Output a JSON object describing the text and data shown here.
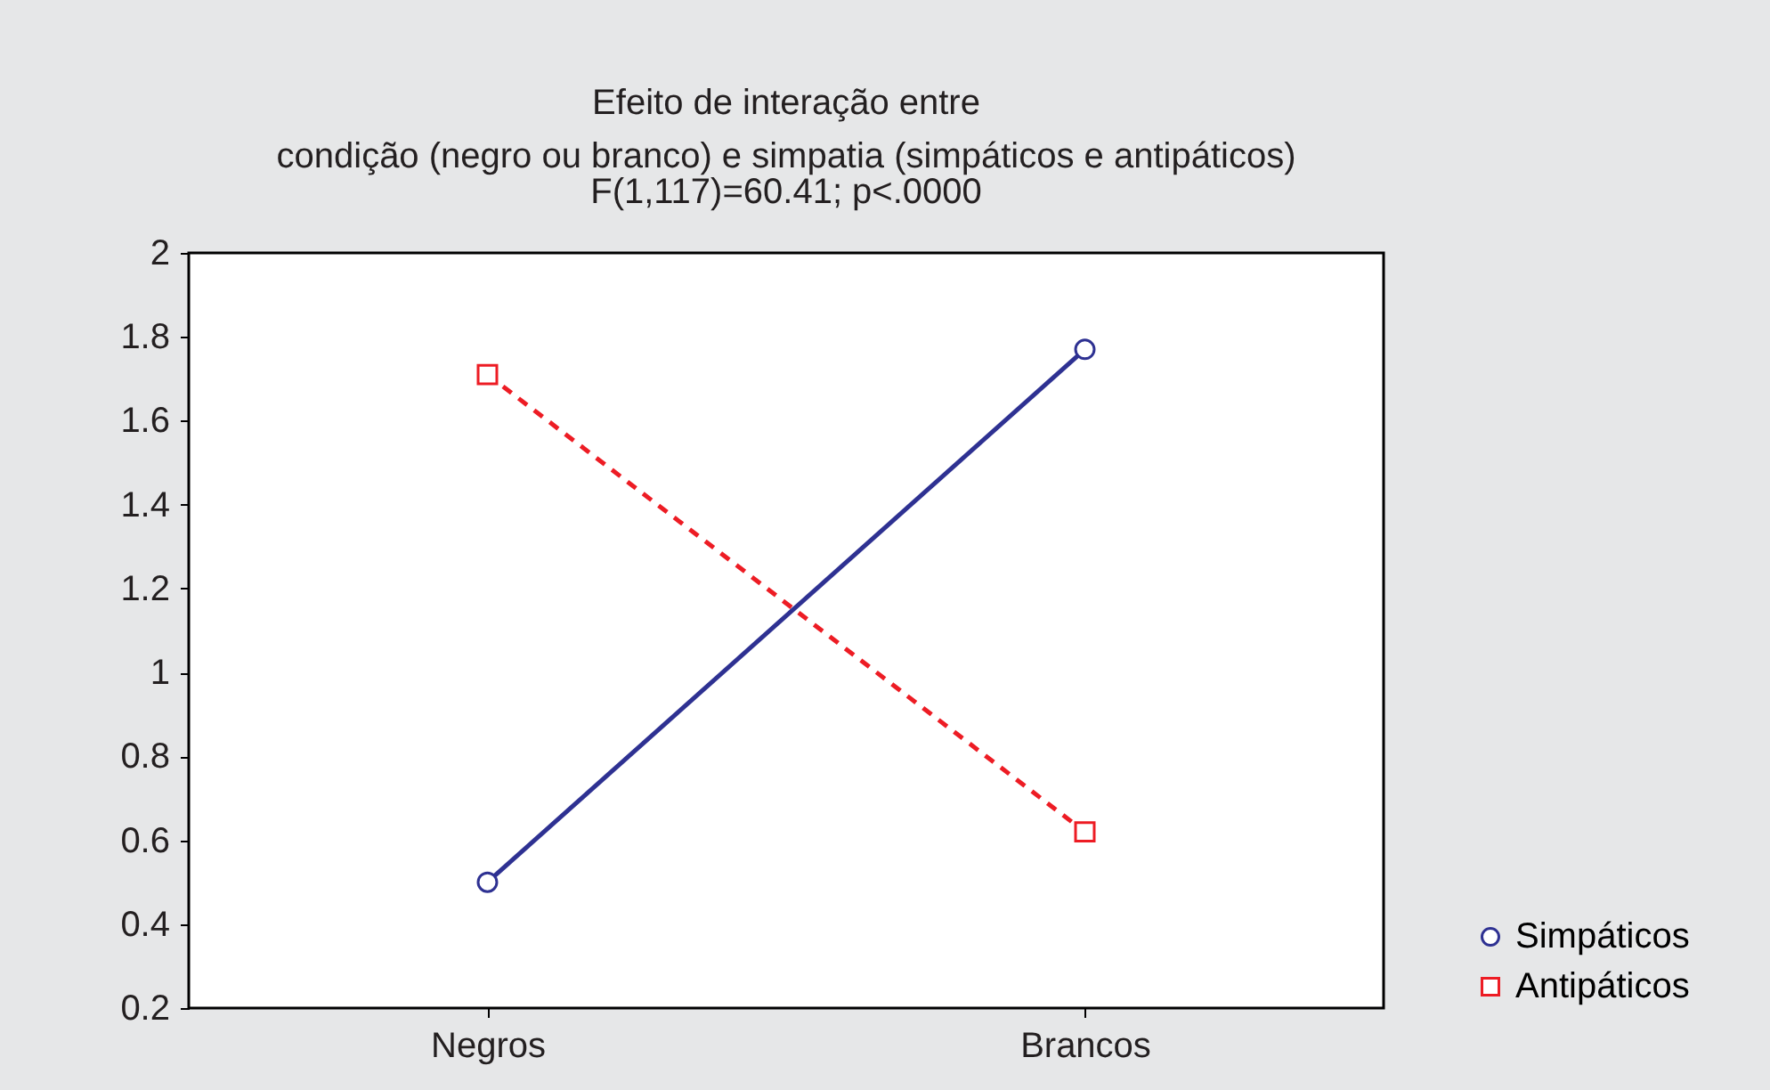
{
  "chart_data": {
    "type": "line",
    "title": "Efeito de interação entre\ncondição (negro ou branco) e simpatia (simpáticos e antipáticos)",
    "subtitle": "F(1,117)=60.41; p<.0000",
    "categories": [
      "Negros",
      "Brancos"
    ],
    "series": [
      {
        "name": "Simpáticos",
        "color": "#2e3192",
        "values": [
          0.5,
          1.77
        ],
        "marker": "circle",
        "line_style": "solid"
      },
      {
        "name": "Antipáticos",
        "color": "#ed1c24",
        "values": [
          1.71,
          0.62
        ],
        "marker": "square",
        "line_style": "dashed"
      }
    ],
    "ylim": [
      0.2,
      2
    ],
    "yticks": [
      0.2,
      0.4,
      0.6,
      0.8,
      1,
      1.2,
      1.4,
      1.6,
      1.8,
      2
    ],
    "grid": false,
    "legend": "bottom right"
  }
}
